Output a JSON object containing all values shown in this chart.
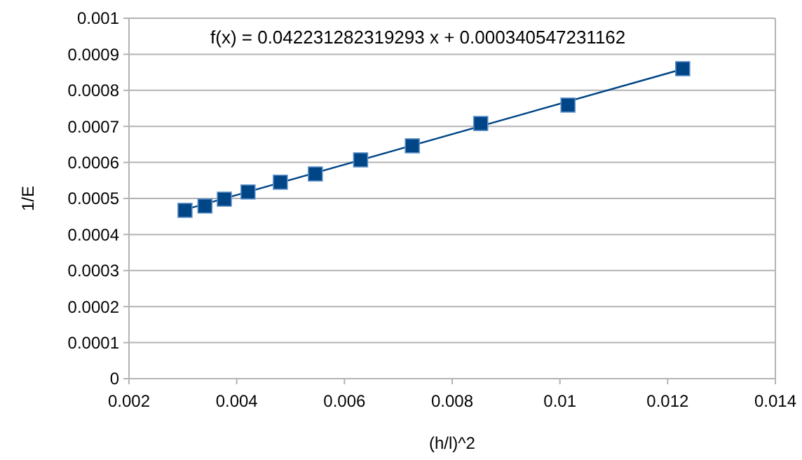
{
  "chart_data": {
    "type": "scatter",
    "xlabel": "(h/l)^2",
    "ylabel": "1/E",
    "annotations": [
      "f(x) = 0.042231282319293 x + 0.000340547231162"
    ],
    "series": [
      {
        "color": "#004586",
        "marker": "square",
        "x": [
          0.00304,
          0.00341,
          0.00377,
          0.00421,
          0.00481,
          0.00546,
          0.0063,
          0.00726,
          0.00853,
          0.01015,
          0.01228
        ],
        "values": [
          0.000467,
          0.000479,
          0.000498,
          0.000518,
          0.000545,
          0.000568,
          0.000607,
          0.000646,
          0.000708,
          0.000759,
          0.00086
        ]
      },
      {
        "type": "line",
        "color": "#004586",
        "marker": "none",
        "x": [
          0.00304,
          0.01228
        ],
        "values": [
          0.000469,
          0.000859
        ]
      }
    ],
    "xlim": [
      0.002,
      0.014
    ],
    "xticks": [
      0.002,
      0.004,
      0.006,
      0.008,
      0.01,
      0.012,
      0.014
    ],
    "ylim": [
      0,
      0.001
    ],
    "yticks": [
      0,
      0.0001,
      0.0002,
      0.0003,
      0.0004,
      0.0005,
      0.0006,
      0.0007,
      0.0008,
      0.0009,
      0.001
    ],
    "grid": "y"
  }
}
